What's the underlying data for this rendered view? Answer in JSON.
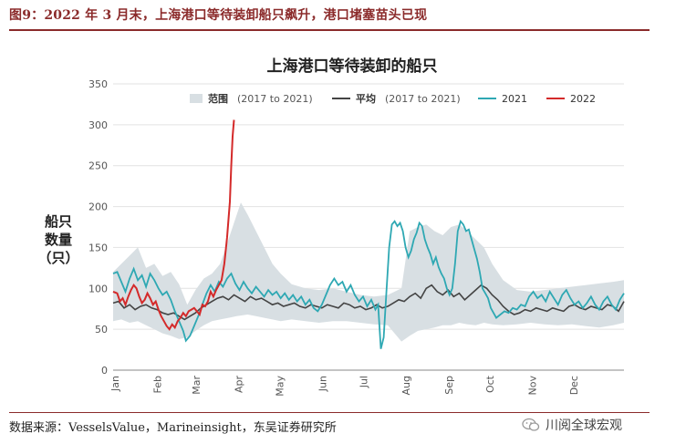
{
  "figure_title": "图9：2022 年 3 月末，上海港口等待装卸船只飙升，港口堵塞苗头已现",
  "source": "数据来源：VesselsValue，Marineinsight，东吴证券研究所",
  "brand": "川阅全球宏观",
  "colors": {
    "range": "#d8dfe3",
    "avg": "#444444",
    "y2021": "#2ea8b3",
    "y2022": "#d42a2a",
    "title_red": "#8b2b2b"
  },
  "chart_data": {
    "type": "line",
    "title": "上海港口等待装卸的船只",
    "ylabel": "船只\n数量\n（只）",
    "ylim": [
      0,
      350
    ],
    "yticks": [
      0,
      50,
      100,
      150,
      200,
      250,
      300,
      350
    ],
    "xticks": [
      {
        "label": "Jan",
        "day": 0
      },
      {
        "label": "Feb",
        "day": 31
      },
      {
        "label": "Mar",
        "day": 59
      },
      {
        "label": "Apr",
        "day": 90
      },
      {
        "label": "May",
        "day": 120
      },
      {
        "label": "Jun",
        "day": 151
      },
      {
        "label": "Jul",
        "day": 181
      },
      {
        "label": "Aug",
        "day": 212
      },
      {
        "label": "Sep",
        "day": 243
      },
      {
        "label": "Oct",
        "day": 273
      },
      {
        "label": "Nov",
        "day": 304
      },
      {
        "label": "Dec",
        "day": 334
      }
    ],
    "xlim": [
      0,
      372
    ],
    "legend": [
      {
        "label": "范围",
        "note": "(2017 to 2021)",
        "kind": "area",
        "color": "#d8dfe3"
      },
      {
        "label": "平均",
        "note": "(2017 to 2021)",
        "kind": "line",
        "color": "#444444"
      },
      {
        "label": "2021",
        "kind": "line",
        "color": "#2ea8b3"
      },
      {
        "label": "2022",
        "kind": "line",
        "color": "#d42a2a"
      }
    ],
    "range_upper": [
      [
        0,
        120
      ],
      [
        6,
        130
      ],
      [
        12,
        140
      ],
      [
        18,
        150
      ],
      [
        24,
        125
      ],
      [
        30,
        130
      ],
      [
        36,
        115
      ],
      [
        42,
        120
      ],
      [
        48,
        105
      ],
      [
        54,
        80
      ],
      [
        60,
        98
      ],
      [
        66,
        112
      ],
      [
        72,
        118
      ],
      [
        78,
        130
      ],
      [
        84,
        160
      ],
      [
        90,
        190
      ],
      [
        93,
        205
      ],
      [
        98,
        190
      ],
      [
        104,
        170
      ],
      [
        110,
        150
      ],
      [
        116,
        130
      ],
      [
        122,
        118
      ],
      [
        130,
        105
      ],
      [
        140,
        100
      ],
      [
        150,
        98
      ],
      [
        160,
        100
      ],
      [
        170,
        96
      ],
      [
        180,
        92
      ],
      [
        190,
        90
      ],
      [
        200,
        92
      ],
      [
        210,
        100
      ],
      [
        216,
        170
      ],
      [
        222,
        175
      ],
      [
        228,
        178
      ],
      [
        234,
        170
      ],
      [
        240,
        165
      ],
      [
        246,
        175
      ],
      [
        252,
        178
      ],
      [
        258,
        170
      ],
      [
        264,
        160
      ],
      [
        270,
        150
      ],
      [
        276,
        130
      ],
      [
        284,
        110
      ],
      [
        294,
        98
      ],
      [
        304,
        96
      ],
      [
        314,
        98
      ],
      [
        324,
        100
      ],
      [
        334,
        102
      ],
      [
        344,
        104
      ],
      [
        354,
        106
      ],
      [
        364,
        108
      ],
      [
        372,
        110
      ]
    ],
    "range_lower": [
      [
        0,
        60
      ],
      [
        6,
        62
      ],
      [
        12,
        58
      ],
      [
        18,
        60
      ],
      [
        24,
        55
      ],
      [
        30,
        50
      ],
      [
        36,
        45
      ],
      [
        42,
        42
      ],
      [
        48,
        38
      ],
      [
        54,
        40
      ],
      [
        60,
        48
      ],
      [
        66,
        55
      ],
      [
        72,
        60
      ],
      [
        78,
        62
      ],
      [
        84,
        64
      ],
      [
        90,
        66
      ],
      [
        98,
        68
      ],
      [
        104,
        66
      ],
      [
        110,
        64
      ],
      [
        116,
        62
      ],
      [
        122,
        60
      ],
      [
        130,
        62
      ],
      [
        140,
        60
      ],
      [
        150,
        58
      ],
      [
        160,
        60
      ],
      [
        170,
        60
      ],
      [
        180,
        58
      ],
      [
        190,
        56
      ],
      [
        200,
        55
      ],
      [
        210,
        35
      ],
      [
        216,
        42
      ],
      [
        222,
        48
      ],
      [
        228,
        50
      ],
      [
        234,
        52
      ],
      [
        240,
        55
      ],
      [
        246,
        55
      ],
      [
        252,
        58
      ],
      [
        258,
        56
      ],
      [
        264,
        55
      ],
      [
        270,
        58
      ],
      [
        276,
        56
      ],
      [
        284,
        55
      ],
      [
        294,
        56
      ],
      [
        304,
        58
      ],
      [
        314,
        56
      ],
      [
        324,
        55
      ],
      [
        334,
        56
      ],
      [
        344,
        54
      ],
      [
        354,
        52
      ],
      [
        364,
        55
      ],
      [
        372,
        58
      ]
    ],
    "average": [
      [
        0,
        82
      ],
      [
        4,
        84
      ],
      [
        8,
        76
      ],
      [
        12,
        80
      ],
      [
        16,
        74
      ],
      [
        20,
        78
      ],
      [
        24,
        80
      ],
      [
        28,
        76
      ],
      [
        32,
        74
      ],
      [
        36,
        70
      ],
      [
        40,
        68
      ],
      [
        44,
        70
      ],
      [
        48,
        66
      ],
      [
        52,
        62
      ],
      [
        56,
        66
      ],
      [
        60,
        70
      ],
      [
        64,
        76
      ],
      [
        68,
        80
      ],
      [
        72,
        84
      ],
      [
        76,
        88
      ],
      [
        80,
        90
      ],
      [
        84,
        86
      ],
      [
        88,
        92
      ],
      [
        92,
        88
      ],
      [
        96,
        84
      ],
      [
        100,
        90
      ],
      [
        104,
        86
      ],
      [
        108,
        88
      ],
      [
        112,
        84
      ],
      [
        116,
        80
      ],
      [
        120,
        82
      ],
      [
        124,
        78
      ],
      [
        128,
        80
      ],
      [
        132,
        82
      ],
      [
        136,
        78
      ],
      [
        140,
        76
      ],
      [
        144,
        80
      ],
      [
        148,
        78
      ],
      [
        152,
        76
      ],
      [
        156,
        80
      ],
      [
        160,
        78
      ],
      [
        164,
        76
      ],
      [
        168,
        82
      ],
      [
        172,
        80
      ],
      [
        176,
        76
      ],
      [
        180,
        78
      ],
      [
        184,
        74
      ],
      [
        188,
        76
      ],
      [
        192,
        80
      ],
      [
        196,
        76
      ],
      [
        200,
        78
      ],
      [
        204,
        82
      ],
      [
        208,
        86
      ],
      [
        212,
        84
      ],
      [
        216,
        90
      ],
      [
        220,
        94
      ],
      [
        224,
        88
      ],
      [
        228,
        100
      ],
      [
        232,
        104
      ],
      [
        236,
        96
      ],
      [
        240,
        92
      ],
      [
        244,
        98
      ],
      [
        248,
        90
      ],
      [
        252,
        94
      ],
      [
        256,
        86
      ],
      [
        260,
        92
      ],
      [
        264,
        98
      ],
      [
        268,
        104
      ],
      [
        272,
        100
      ],
      [
        276,
        92
      ],
      [
        280,
        86
      ],
      [
        284,
        78
      ],
      [
        288,
        72
      ],
      [
        292,
        68
      ],
      [
        296,
        70
      ],
      [
        300,
        74
      ],
      [
        304,
        72
      ],
      [
        308,
        76
      ],
      [
        312,
        74
      ],
      [
        316,
        72
      ],
      [
        320,
        76
      ],
      [
        324,
        74
      ],
      [
        328,
        72
      ],
      [
        332,
        78
      ],
      [
        336,
        80
      ],
      [
        340,
        76
      ],
      [
        344,
        74
      ],
      [
        348,
        78
      ],
      [
        352,
        76
      ],
      [
        356,
        74
      ],
      [
        360,
        80
      ],
      [
        364,
        78
      ],
      [
        368,
        72
      ],
      [
        372,
        84
      ]
    ],
    "series_2021": [
      [
        0,
        118
      ],
      [
        3,
        120
      ],
      [
        6,
        108
      ],
      [
        9,
        96
      ],
      [
        12,
        112
      ],
      [
        15,
        124
      ],
      [
        18,
        110
      ],
      [
        21,
        116
      ],
      [
        24,
        102
      ],
      [
        27,
        118
      ],
      [
        30,
        110
      ],
      [
        33,
        100
      ],
      [
        36,
        92
      ],
      [
        39,
        96
      ],
      [
        42,
        86
      ],
      [
        45,
        72
      ],
      [
        48,
        60
      ],
      [
        51,
        48
      ],
      [
        53,
        36
      ],
      [
        56,
        42
      ],
      [
        59,
        54
      ],
      [
        62,
        66
      ],
      [
        65,
        80
      ],
      [
        68,
        94
      ],
      [
        71,
        104
      ],
      [
        74,
        96
      ],
      [
        77,
        108
      ],
      [
        80,
        102
      ],
      [
        83,
        112
      ],
      [
        86,
        118
      ],
      [
        89,
        106
      ],
      [
        92,
        98
      ],
      [
        95,
        108
      ],
      [
        98,
        100
      ],
      [
        101,
        94
      ],
      [
        104,
        102
      ],
      [
        107,
        96
      ],
      [
        110,
        90
      ],
      [
        113,
        98
      ],
      [
        116,
        92
      ],
      [
        119,
        96
      ],
      [
        122,
        88
      ],
      [
        125,
        94
      ],
      [
        128,
        86
      ],
      [
        131,
        92
      ],
      [
        134,
        84
      ],
      [
        137,
        90
      ],
      [
        140,
        80
      ],
      [
        143,
        86
      ],
      [
        146,
        76
      ],
      [
        149,
        72
      ],
      [
        152,
        80
      ],
      [
        155,
        92
      ],
      [
        158,
        104
      ],
      [
        161,
        112
      ],
      [
        164,
        104
      ],
      [
        167,
        108
      ],
      [
        170,
        96
      ],
      [
        173,
        104
      ],
      [
        176,
        92
      ],
      [
        179,
        84
      ],
      [
        182,
        90
      ],
      [
        185,
        78
      ],
      [
        188,
        86
      ],
      [
        191,
        74
      ],
      [
        193,
        80
      ],
      [
        195,
        26
      ],
      [
        197,
        40
      ],
      [
        199,
        96
      ],
      [
        201,
        150
      ],
      [
        203,
        178
      ],
      [
        205,
        182
      ],
      [
        207,
        176
      ],
      [
        209,
        180
      ],
      [
        211,
        170
      ],
      [
        213,
        150
      ],
      [
        215,
        138
      ],
      [
        217,
        146
      ],
      [
        219,
        160
      ],
      [
        221,
        168
      ],
      [
        223,
        180
      ],
      [
        225,
        176
      ],
      [
        227,
        160
      ],
      [
        229,
        150
      ],
      [
        231,
        142
      ],
      [
        233,
        130
      ],
      [
        235,
        138
      ],
      [
        237,
        126
      ],
      [
        239,
        118
      ],
      [
        241,
        112
      ],
      [
        243,
        100
      ],
      [
        245,
        92
      ],
      [
        247,
        100
      ],
      [
        249,
        130
      ],
      [
        251,
        170
      ],
      [
        253,
        182
      ],
      [
        255,
        178
      ],
      [
        257,
        170
      ],
      [
        259,
        172
      ],
      [
        261,
        160
      ],
      [
        263,
        148
      ],
      [
        265,
        136
      ],
      [
        267,
        120
      ],
      [
        269,
        100
      ],
      [
        271,
        94
      ],
      [
        273,
        88
      ],
      [
        275,
        76
      ],
      [
        277,
        70
      ],
      [
        279,
        64
      ],
      [
        282,
        68
      ],
      [
        285,
        72
      ],
      [
        288,
        70
      ],
      [
        291,
        76
      ],
      [
        294,
        74
      ],
      [
        297,
        80
      ],
      [
        300,
        78
      ],
      [
        303,
        90
      ],
      [
        306,
        96
      ],
      [
        309,
        88
      ],
      [
        312,
        92
      ],
      [
        315,
        84
      ],
      [
        318,
        96
      ],
      [
        321,
        88
      ],
      [
        324,
        80
      ],
      [
        327,
        92
      ],
      [
        330,
        98
      ],
      [
        333,
        88
      ],
      [
        336,
        80
      ],
      [
        339,
        84
      ],
      [
        342,
        76
      ],
      [
        345,
        82
      ],
      [
        348,
        90
      ],
      [
        351,
        80
      ],
      [
        354,
        74
      ],
      [
        357,
        84
      ],
      [
        360,
        90
      ],
      [
        363,
        80
      ],
      [
        366,
        74
      ],
      [
        369,
        86
      ],
      [
        372,
        94
      ]
    ],
    "series_2022": [
      [
        0,
        96
      ],
      [
        3,
        94
      ],
      [
        5,
        84
      ],
      [
        7,
        88
      ],
      [
        9,
        80
      ],
      [
        11,
        90
      ],
      [
        13,
        98
      ],
      [
        15,
        104
      ],
      [
        17,
        100
      ],
      [
        19,
        90
      ],
      [
        21,
        82
      ],
      [
        23,
        86
      ],
      [
        25,
        94
      ],
      [
        27,
        88
      ],
      [
        29,
        80
      ],
      [
        31,
        84
      ],
      [
        33,
        74
      ],
      [
        35,
        66
      ],
      [
        37,
        60
      ],
      [
        39,
        54
      ],
      [
        41,
        50
      ],
      [
        43,
        56
      ],
      [
        45,
        52
      ],
      [
        47,
        60
      ],
      [
        49,
        64
      ],
      [
        51,
        70
      ],
      [
        53,
        66
      ],
      [
        55,
        72
      ],
      [
        57,
        74
      ],
      [
        59,
        76
      ],
      [
        61,
        72
      ],
      [
        63,
        68
      ],
      [
        65,
        80
      ],
      [
        67,
        78
      ],
      [
        69,
        84
      ],
      [
        71,
        96
      ],
      [
        73,
        90
      ],
      [
        75,
        98
      ],
      [
        77,
        104
      ],
      [
        79,
        110
      ],
      [
        81,
        130
      ],
      [
        83,
        162
      ],
      [
        85,
        206
      ],
      [
        86,
        250
      ],
      [
        87,
        286
      ],
      [
        88,
        306
      ]
    ]
  }
}
